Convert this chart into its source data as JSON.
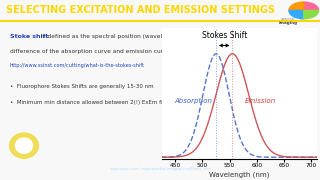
{
  "title": "SELECTING EXCITATION AND EMISSION SETTINGS",
  "title_color": "#FFD700",
  "header_bg": "#F5F5F5",
  "header_line_color": "#FFD700",
  "absorption_peak": 525,
  "emission_peak": 555,
  "absorption_color": "#4466CC",
  "emission_color": "#CC4444",
  "xmin": 425,
  "xmax": 710,
  "xlabel": "Wavelength (nm)",
  "xticks": [
    450,
    500,
    550,
    600,
    650,
    700
  ],
  "stokes_label": "Stokes Shift",
  "absorption_label": "Absorption",
  "emission_label": "Emission",
  "footer_bg_top": "#AADDFF",
  "footer_bg_bot": "#55AAEE"
}
